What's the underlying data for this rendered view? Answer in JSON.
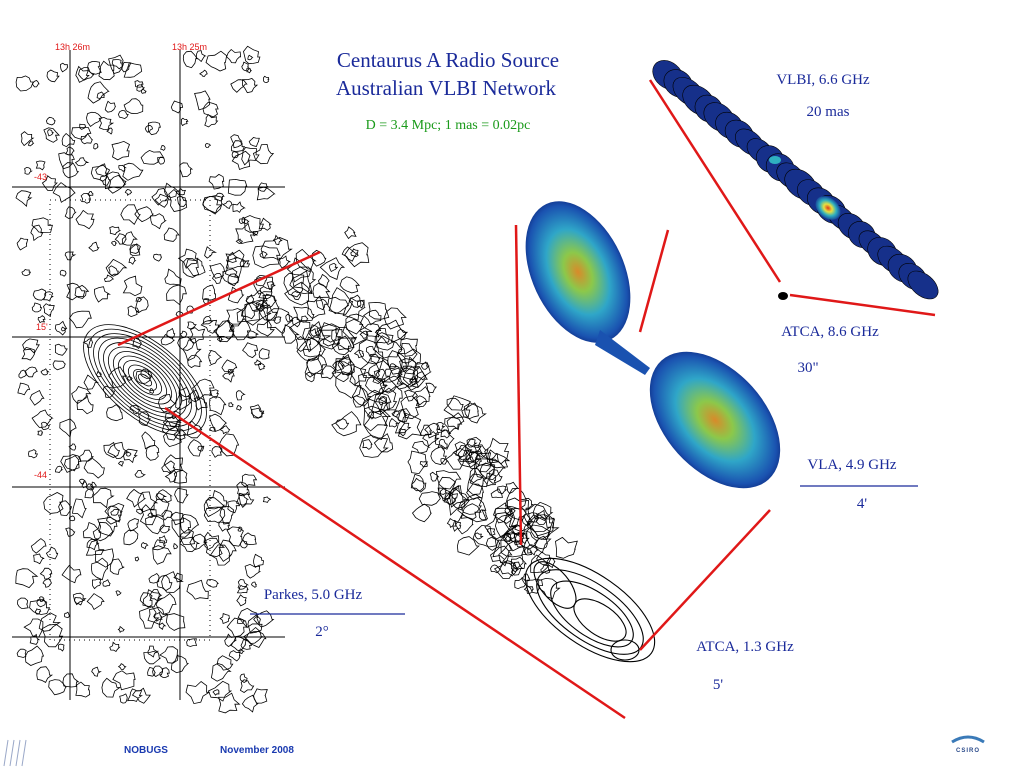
{
  "header": {
    "title_lines": [
      "Centaurus A Radio Source",
      "Australian VLBI Network"
    ],
    "subtitle": "D = 3.4 Mpc; 1 mas = 0.02pc"
  },
  "left_map": {
    "axis_labels": [
      "13h 26m",
      "13h 25m",
      "-43",
      "15'",
      "-44"
    ]
  },
  "panels": [
    {
      "label": "VLBI, 6.6 GHz",
      "scale": "20 mas"
    },
    {
      "label": "ATCA, 8.6 GHz",
      "scale": "30\""
    },
    {
      "label": "VLA, 4.9 GHz",
      "scale": "4'"
    },
    {
      "label": "Parkes, 5.0 GHz",
      "scale": "2°"
    },
    {
      "label": "ATCA, 1.3 GHz",
      "scale": "5'"
    }
  ],
  "footer": {
    "event": "NOBUGS",
    "date": "November 2008",
    "logo": "CSIRO"
  }
}
